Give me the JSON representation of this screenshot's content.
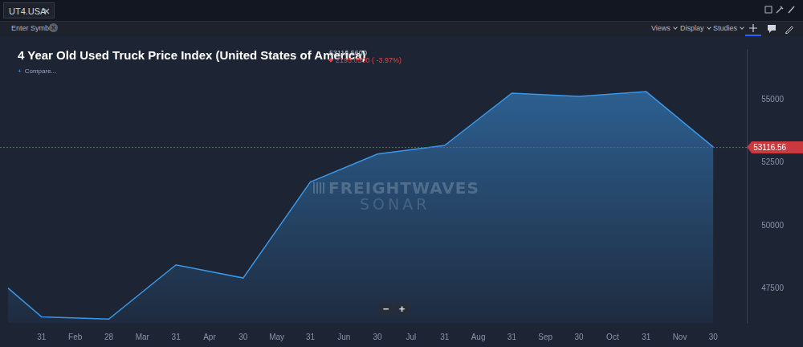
{
  "ui": {
    "tab": "UT4.USA",
    "symbol_placeholder": "Enter Symbol",
    "clear_symbol": "X",
    "menus": [
      "Views",
      "Display",
      "Studies"
    ],
    "compare": "Compare...",
    "watermark": [
      "FREIGHTWAVES",
      "SONAR"
    ],
    "zoom": [
      "−",
      "+"
    ]
  },
  "chart_data": {
    "type": "area",
    "title": "4 Year Old Used Truck Price Index (United States of America)",
    "annotations": [
      {
        "text": "53116.5600"
      },
      {
        "text": "2195.0500 ( -3.97%)"
      },
      {
        "text": "53116.56",
        "value": 53116.56
      }
    ],
    "categories": [
      null,
      "31",
      "Feb",
      "28",
      "Mar",
      "31",
      "Apr",
      "30",
      "May",
      "31",
      "Jun",
      "30",
      "Jul",
      "31",
      "Aug",
      "31",
      "Sep",
      "30",
      "Oct",
      "31",
      "Nov",
      "30",
      null
    ],
    "values": [
      47530,
      46390,
      null,
      46300,
      null,
      48450,
      null,
      47930,
      null,
      51730,
      null,
      52840,
      null,
      53180,
      null,
      55250,
      null,
      55120,
      null,
      55311.61,
      null,
      53116.56,
      null
    ],
    "color": "#3b97e6",
    "ylim": [
      46150,
      57000
    ],
    "yticks": [
      47500,
      50000,
      52500,
      55000
    ],
    "grid": false
  }
}
